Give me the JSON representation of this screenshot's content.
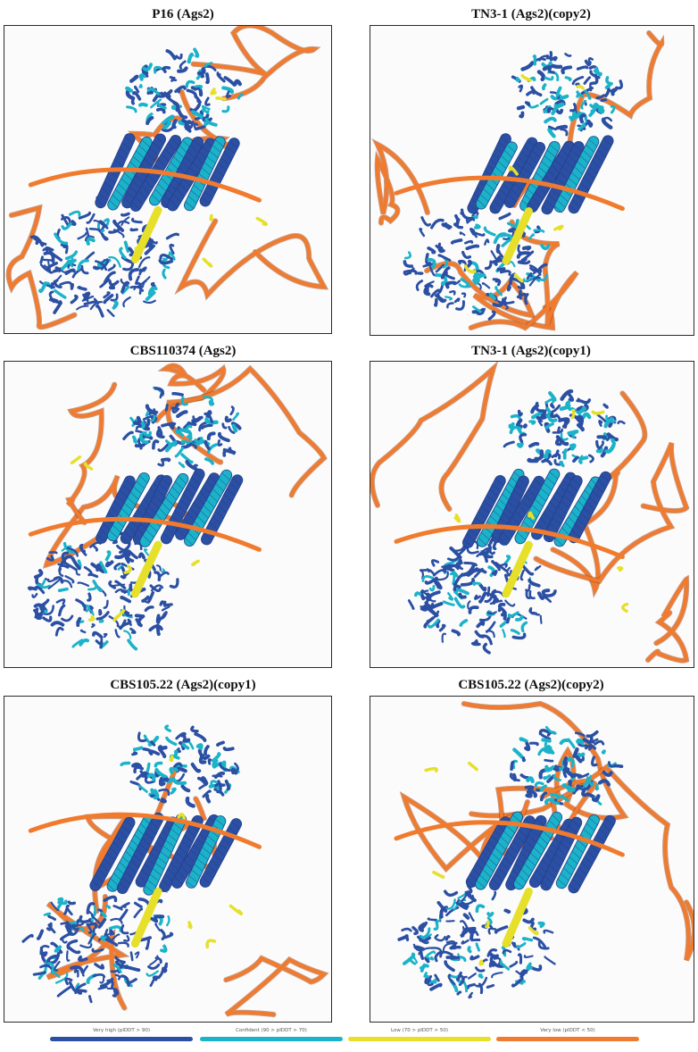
{
  "panels": [
    {
      "title": "P16 (Ags2)"
    },
    {
      "title": "TN3-1 (Ags2)(copy2)"
    },
    {
      "title": "CBS110374 (Ags2)"
    },
    {
      "title": "TN3-1 (Ags2)(copy1)"
    },
    {
      "title": "CBS105.22 (Ags2)(copy1)"
    },
    {
      "title": "CBS105.22 (Ags2)(copy2)"
    }
  ],
  "legend": {
    "items": [
      {
        "label": "Very high (pIDDT > 90)",
        "color": "#2b4fa3"
      },
      {
        "label": "Confident (90 > pIDDT > 70)",
        "color": "#1bb3c9"
      },
      {
        "label": "Low (70 > pIDDT > 50)",
        "color": "#e6e02a"
      },
      {
        "label": "Very low (pIDDT < 50)",
        "color": "#f07b2e"
      }
    ]
  },
  "colors": {
    "very_high": "#2b4fa3",
    "very_high_dark": "#233f8a",
    "confident": "#1bb3c9",
    "low": "#e6e02a",
    "very_low": "#f07b2e",
    "very_low_dark": "#a0471a"
  }
}
